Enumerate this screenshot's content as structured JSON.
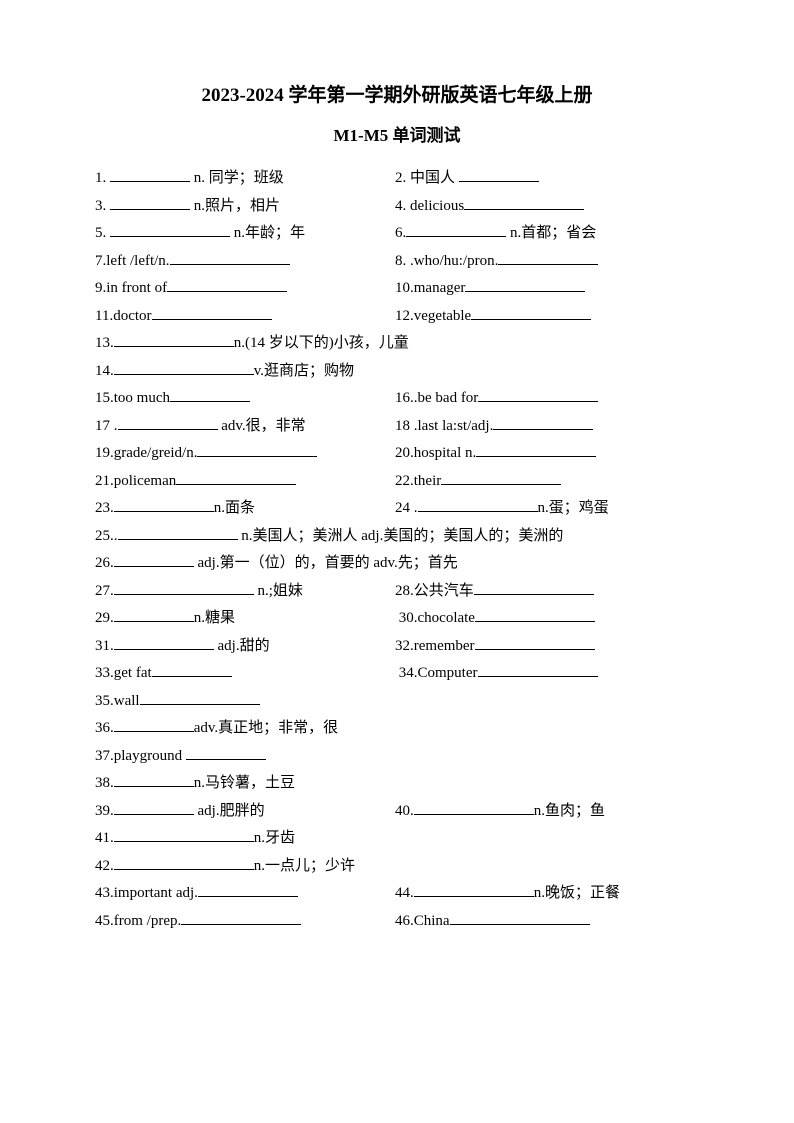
{
  "title": "2023-2024 学年第一学期外研版英语七年级上册",
  "subtitle": "M1-M5 单词测试",
  "items": {
    "q1": "1. ",
    "q1_tail": " n. 同学；班级",
    "q2": "2. 中国人 ",
    "q3": "3. ",
    "q3_tail": " n.照片，相片",
    "q4": "4.   delicious",
    "q5": "5. ",
    "q5_tail": " n.年龄；年",
    "q6": "6.",
    "q6_tail": " n.首都；省会",
    "q7": "7.left /left/n.",
    "q8": "8. .who/hu:/pron.",
    "q9": "9.in front of",
    "q10": "10.manager",
    "q11": "11.doctor",
    "q12": "12.vegetable",
    "q13": "13.",
    "q13_tail": "n.(14 岁以下的)小孩，儿童",
    "q14": "14.",
    "q14_tail": "v.逛商店；购物",
    "q15": "15.too much",
    "q16": "16..be bad for",
    "q17": "17 .",
    "q17_tail": " adv.很，非常",
    "q18": "18 .last la:st/adj.",
    "q19": "19.grade/greid/n.",
    "q20": "20.hospital n.",
    "q21": "21.policeman",
    "q22": "22.their",
    "q23": "23.",
    "q23_tail": "n.面条",
    "q24": "24 .",
    "q24_tail": "n.蛋；鸡蛋",
    "q25": "25..",
    "q25_tail": " n.美国人；美洲人 adj.美国的；美国人的；美洲的",
    "q26": "26.",
    "q26_tail": " adj.第一（位）的，首要的 adv.先；首先",
    "q27": "27.",
    "q27_tail": " n.;姐妹",
    "q28": "28.公共汽车",
    "q29": "29.",
    "q29_tail": "n.糖果",
    "q30": "30.chocolate",
    "q31": "31.",
    "q31_tail": " adj.甜的",
    "q32": "32.remember",
    "q33": "33.get fat",
    "q34": "34.Computer",
    "q35": "35.wall",
    "q36": "36.",
    "q36_tail": "adv.真正地；非常，很",
    "q37": "37.playground ",
    "q38": "38.",
    "q38_tail": "n.马铃薯，土豆",
    "q39": "39.",
    "q39_tail": " adj.肥胖的",
    "q40": "40.",
    "q40_tail": "n.鱼肉；鱼",
    "q41": "41.",
    "q41_tail": "n.牙齿",
    "q42": "42.",
    "q42_tail": "n.一点儿；少许",
    "q43": "43.important adj.",
    "q44": "44.",
    "q44_tail": "n.晚饭；正餐",
    "q45": "45.from /prep.",
    "q46": "46.China"
  }
}
